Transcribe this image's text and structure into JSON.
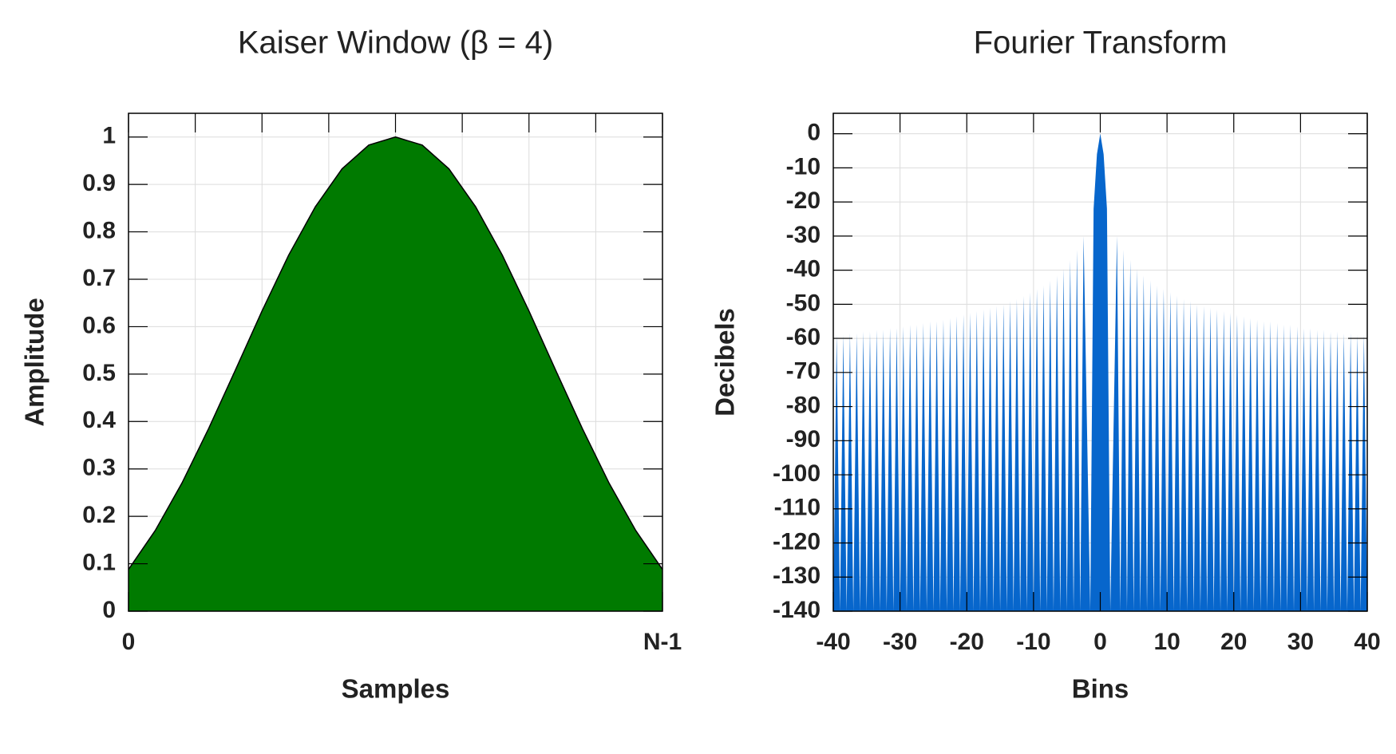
{
  "chart_data": [
    {
      "type": "area",
      "title": "Kaiser Window (β = 4)",
      "xlabel": "Samples",
      "ylabel": "Amplitude",
      "x": [
        0,
        0.05,
        0.1,
        0.15,
        0.2,
        0.25,
        0.3,
        0.35,
        0.4,
        0.45,
        0.5,
        0.55,
        0.6,
        0.65,
        0.7,
        0.75,
        0.8,
        0.85,
        0.9,
        0.95,
        1
      ],
      "values": [
        0.088,
        0.17,
        0.27,
        0.385,
        0.508,
        0.633,
        0.751,
        0.853,
        0.933,
        0.983,
        1,
        0.983,
        0.933,
        0.853,
        0.751,
        0.633,
        0.508,
        0.385,
        0.27,
        0.17,
        0.088
      ],
      "color": "#007a00",
      "outline": "#000000",
      "xlim": [
        0,
        1
      ],
      "ylim": [
        0,
        1.05
      ],
      "xticks": [
        {
          "value": 0,
          "label": "0"
        },
        {
          "value": 1,
          "label": "N-1"
        }
      ],
      "xminor_ticks": [
        0.125,
        0.25,
        0.375,
        0.5,
        0.625,
        0.75,
        0.875
      ],
      "yticks": [
        0,
        0.1,
        0.2,
        0.3,
        0.4,
        0.5,
        0.6,
        0.7,
        0.8,
        0.9,
        1
      ],
      "grid": true
    },
    {
      "type": "area",
      "title": "Fourier Transform",
      "xlabel": "Bins",
      "ylabel": "Decibels",
      "x": [
        -40,
        -39.5,
        -39,
        -38.5,
        -38,
        -37.5,
        -37,
        -36.5,
        -36,
        -35.5,
        -35,
        -34.5,
        -34,
        -33.5,
        -33,
        -32.5,
        -32,
        -31.5,
        -31,
        -30.5,
        -30,
        -29.5,
        -29,
        -28.5,
        -28,
        -27.5,
        -27,
        -26.5,
        -26,
        -25.5,
        -25,
        -24.5,
        -24,
        -23.5,
        -23,
        -22.5,
        -22,
        -21.5,
        -21,
        -20.5,
        -20,
        -19.5,
        -19,
        -18.5,
        -18,
        -17.5,
        -17,
        -16.5,
        -16,
        -15.5,
        -15,
        -14.5,
        -14,
        -13.5,
        -13,
        -12.5,
        -12,
        -11.5,
        -11,
        -10.5,
        -10,
        -9.5,
        -9,
        -8.5,
        -8,
        -7.5,
        -7,
        -6.5,
        -6,
        -5.5,
        -5,
        -4.5,
        -4,
        -3.5,
        -3,
        -2.5,
        -1.5,
        -1,
        -0.5,
        0,
        0.5,
        1,
        1.5,
        2.5,
        3,
        3.5,
        4,
        4.5,
        5,
        5.5,
        6,
        6.5,
        7,
        7.5,
        8,
        8.5,
        9,
        9.5,
        10,
        10.5,
        11,
        11.5,
        12,
        12.5,
        13,
        13.5,
        14,
        14.5,
        15,
        15.5,
        16,
        16.5,
        17,
        17.5,
        18,
        18.5,
        19,
        19.5,
        20,
        20.5,
        21,
        21.5,
        22,
        22.5,
        23,
        23.5,
        24,
        24.5,
        25,
        25.5,
        26,
        26.5,
        27,
        27.5,
        28,
        28.5,
        29,
        29.5,
        30,
        30.5,
        31,
        31.5,
        32,
        32.5,
        33,
        33.5,
        34,
        34.5,
        35,
        35.5,
        36,
        36.5,
        37,
        37.5,
        38,
        38.5,
        39,
        39.5,
        40
      ],
      "values": [
        -140,
        -59,
        -140,
        -59,
        -140,
        -58.5,
        -140,
        -58.5,
        -140,
        -58,
        -140,
        -58,
        -140,
        -57.5,
        -140,
        -57.5,
        -140,
        -57,
        -140,
        -57,
        -140,
        -56.5,
        -140,
        -56,
        -140,
        -56,
        -140,
        -55.5,
        -140,
        -55,
        -140,
        -55,
        -140,
        -54.5,
        -140,
        -54,
        -140,
        -53.5,
        -140,
        -53,
        -140,
        -52.5,
        -140,
        -52,
        -140,
        -51.5,
        -140,
        -51,
        -140,
        -50.5,
        -140,
        -50,
        -140,
        -49,
        -140,
        -48.5,
        -140,
        -47.5,
        -140,
        -46.5,
        -140,
        -45.5,
        -140,
        -44.5,
        -140,
        -43,
        -140,
        -41.5,
        -140,
        -39.5,
        -140,
        -37,
        -140,
        -34,
        -140,
        -30,
        -140,
        -22,
        -6,
        0,
        -6,
        -22,
        -140,
        -30,
        -140,
        -34,
        -140,
        -37,
        -140,
        -39.5,
        -140,
        -41.5,
        -140,
        -43,
        -140,
        -44.5,
        -140,
        -45.5,
        -140,
        -46.5,
        -140,
        -47.5,
        -140,
        -48.5,
        -140,
        -49,
        -140,
        -50,
        -140,
        -50.5,
        -140,
        -51,
        -140,
        -51.5,
        -140,
        -52,
        -140,
        -52.5,
        -140,
        -53,
        -140,
        -53.5,
        -140,
        -54,
        -140,
        -54.5,
        -140,
        -55,
        -140,
        -55,
        -140,
        -55.5,
        -140,
        -56,
        -140,
        -56,
        -140,
        -56.5,
        -140,
        -57,
        -140,
        -57,
        -140,
        -57.5,
        -140,
        -57.5,
        -140,
        -58,
        -140,
        -58,
        -140,
        -58.5,
        -140,
        -58.5,
        -140,
        -59,
        -140,
        -59,
        -140
      ],
      "color": "#0766cc",
      "xlim": [
        -40,
        40
      ],
      "ylim": [
        -140,
        6
      ],
      "xticks": [
        -40,
        -30,
        -20,
        -10,
        0,
        10,
        20,
        30,
        40
      ],
      "yticks": [
        0,
        -10,
        -20,
        -30,
        -40,
        -50,
        -60,
        -70,
        -80,
        -90,
        -100,
        -110,
        -120,
        -130,
        -140
      ],
      "grid": true
    }
  ]
}
